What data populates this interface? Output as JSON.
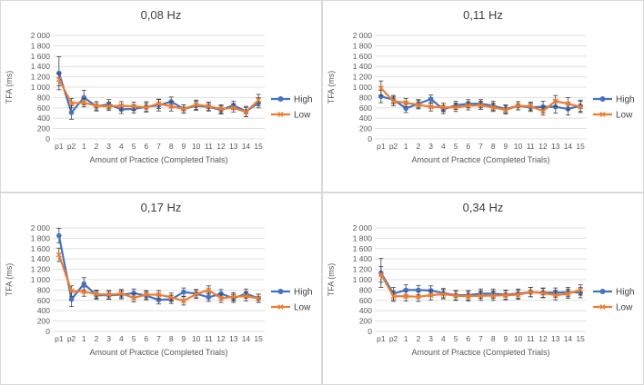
{
  "colors": {
    "high": "#4472C4",
    "low": "#ED7D31",
    "grid": "#d9d9d9",
    "error": "#404040"
  },
  "chart_data": [
    {
      "type": "line",
      "title": "0,08 Hz",
      "xlabel": "Amount of Practice (Completed Trials)",
      "ylabel": "TFA (ms)",
      "ylim": [
        0,
        2000
      ],
      "yticks": [
        "0",
        "200",
        "400",
        "600",
        "800",
        "1 000",
        "1 200",
        "1 400",
        "1 600",
        "1 800",
        "2 000"
      ],
      "categories": [
        "p1",
        "p2",
        "1",
        "2",
        "3",
        "4",
        "5",
        "6",
        "7",
        "8",
        "9",
        "10",
        "11",
        "12",
        "13",
        "14",
        "15"
      ],
      "series": [
        {
          "name": "High",
          "values": [
            1270,
            510,
            800,
            630,
            670,
            570,
            580,
            620,
            650,
            720,
            580,
            640,
            620,
            560,
            650,
            530,
            700
          ],
          "errors": [
            320,
            130,
            140,
            90,
            90,
            80,
            80,
            100,
            110,
            90,
            80,
            90,
            80,
            80,
            80,
            100,
            100
          ]
        },
        {
          "name": "Low",
          "values": [
            1150,
            690,
            700,
            640,
            630,
            640,
            630,
            610,
            680,
            630,
            580,
            660,
            630,
            580,
            600,
            520,
            750
          ],
          "errors": [
            120,
            90,
            80,
            80,
            80,
            80,
            80,
            80,
            90,
            90,
            80,
            90,
            80,
            80,
            80,
            90,
            110
          ]
        }
      ],
      "legend": "right"
    },
    {
      "type": "line",
      "title": "0,11 Hz",
      "xlabel": "Amount of Practice (Completed Trials)",
      "ylabel": "TFA (ms)",
      "ylim": [
        0,
        2000
      ],
      "yticks": [
        "0",
        "200",
        "400",
        "600",
        "800",
        "1 000",
        "1 200",
        "1 400",
        "1 600",
        "1 800",
        "2 000"
      ],
      "categories": [
        "p1",
        "p2",
        "1",
        "2",
        "3",
        "4",
        "5",
        "6",
        "7",
        "8",
        "9",
        "10",
        "11",
        "12",
        "13",
        "14",
        "15"
      ],
      "series": [
        {
          "name": "High",
          "values": [
            820,
            760,
            590,
            680,
            770,
            570,
            650,
            680,
            680,
            640,
            580,
            640,
            610,
            620,
            620,
            580,
            640
          ],
          "errors": [
            120,
            80,
            80,
            80,
            80,
            80,
            80,
            80,
            80,
            90,
            80,
            80,
            80,
            110,
            120,
            120,
            110
          ]
        },
        {
          "name": "Low",
          "values": [
            980,
            730,
            700,
            660,
            620,
            610,
            610,
            640,
            650,
            610,
            560,
            640,
            630,
            540,
            730,
            680,
            620
          ],
          "errors": [
            140,
            90,
            80,
            80,
            80,
            80,
            80,
            80,
            80,
            80,
            80,
            80,
            80,
            80,
            110,
            120,
            110
          ]
        }
      ],
      "legend": "right"
    },
    {
      "type": "line",
      "title": "0,17 Hz",
      "xlabel": "Amount of Practice (Completed Trials)",
      "ylabel": "TFA (ms)",
      "ylim": [
        0,
        2000
      ],
      "yticks": [
        "0",
        "200",
        "400",
        "600",
        "800",
        "1 000",
        "1 200",
        "1 400",
        "1 600",
        "1 800",
        "2 000"
      ],
      "categories": [
        "p1",
        "p2",
        "1",
        "2",
        "3",
        "4",
        "5",
        "6",
        "7",
        "8",
        "9",
        "10",
        "11",
        "12",
        "13",
        "14",
        "15"
      ],
      "series": [
        {
          "name": "High",
          "values": [
            1850,
            620,
            920,
            700,
            700,
            710,
            740,
            690,
            610,
            620,
            760,
            730,
            660,
            730,
            640,
            730,
            640
          ],
          "errors": [
            140,
            140,
            120,
            80,
            80,
            80,
            80,
            80,
            80,
            80,
            80,
            80,
            80,
            80,
            80,
            90,
            80
          ]
        },
        {
          "name": "Low",
          "values": [
            1480,
            780,
            770,
            720,
            710,
            730,
            650,
            710,
            710,
            660,
            590,
            720,
            800,
            640,
            670,
            680,
            640
          ],
          "errors": [
            130,
            100,
            90,
            80,
            80,
            80,
            80,
            80,
            80,
            80,
            80,
            80,
            80,
            80,
            80,
            90,
            80
          ]
        }
      ],
      "legend": "right"
    },
    {
      "type": "line",
      "title": "0,34 Hz",
      "xlabel": "Amount of Practice (Completed Trials)",
      "ylabel": "TFA (ms)",
      "ylim": [
        0,
        2000
      ],
      "yticks": [
        "0",
        "200",
        "400",
        "600",
        "800",
        "1 000",
        "1 200",
        "1 400",
        "1 600",
        "1 800",
        "2 000"
      ],
      "categories": [
        "p1",
        "p2",
        "1",
        "2",
        "3",
        "4",
        "5",
        "6",
        "7",
        "8",
        "9",
        "10",
        "11",
        "12",
        "13",
        "14",
        "15"
      ],
      "series": [
        {
          "name": "High",
          "values": [
            1130,
            730,
            800,
            800,
            790,
            740,
            700,
            700,
            730,
            730,
            710,
            730,
            760,
            750,
            750,
            760,
            750
          ],
          "errors": [
            280,
            120,
            100,
            90,
            90,
            90,
            90,
            90,
            90,
            90,
            90,
            90,
            90,
            90,
            90,
            90,
            100
          ]
        },
        {
          "name": "Low",
          "values": [
            1100,
            680,
            680,
            670,
            700,
            720,
            690,
            680,
            690,
            690,
            700,
            710,
            760,
            740,
            700,
            730,
            800
          ],
          "errors": [
            150,
            100,
            90,
            90,
            90,
            90,
            90,
            90,
            90,
            90,
            90,
            90,
            90,
            90,
            90,
            90,
            100
          ]
        }
      ],
      "legend": "right"
    }
  ]
}
